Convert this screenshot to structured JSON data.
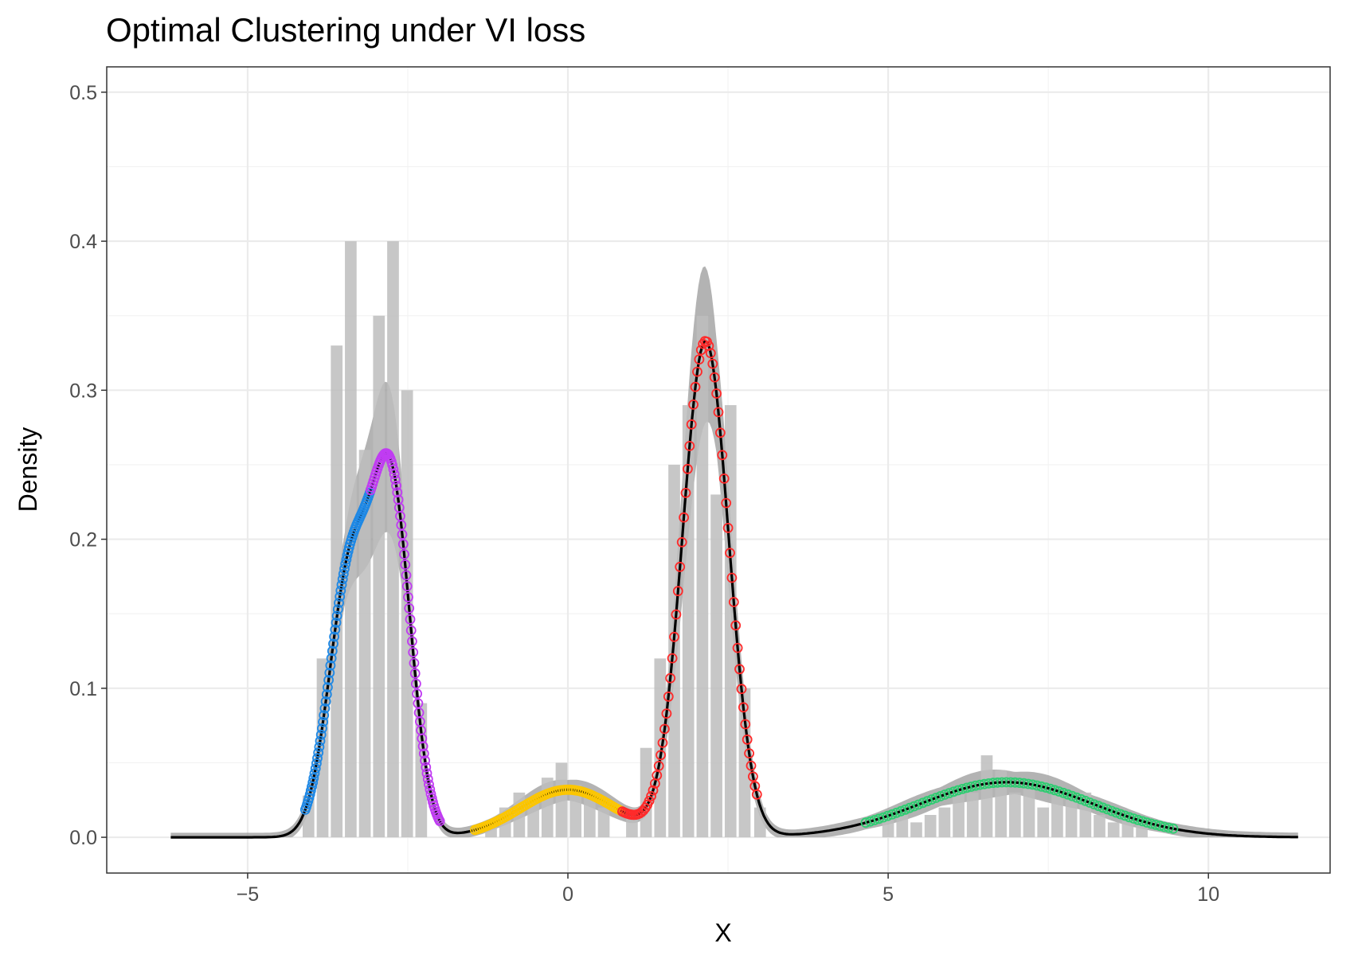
{
  "chart_data": {
    "type": "line",
    "title": "Optimal Clustering under VI loss",
    "xlabel": "X",
    "ylabel": "Density",
    "xlim": [
      -7.2,
      11.9
    ],
    "ylim": [
      -0.024,
      0.517
    ],
    "x_ticks": [
      -5,
      0,
      5,
      10
    ],
    "x_tick_labels": [
      "−5",
      "0",
      "5",
      "10"
    ],
    "y_ticks": [
      0.0,
      0.1,
      0.2,
      0.3,
      0.4,
      0.5
    ],
    "y_tick_labels": [
      "0.0",
      "0.1",
      "0.2",
      "0.3",
      "0.4",
      "0.5"
    ],
    "grid": true,
    "legend": "none",
    "colors": {
      "density_line": "#000000",
      "band": "#999999",
      "histogram": "#bdbdbd",
      "clusters": [
        "#1e88e5",
        "#c03cf2",
        "#fcc600",
        "#ff2a2a",
        "#2ecc71"
      ]
    },
    "density_curve": {
      "x_range": [
        -6.2,
        11.4
      ],
      "components": [
        {
          "weight": 0.145,
          "mean": -3.4,
          "sd": 0.33
        },
        {
          "weight": 0.17,
          "mean": -2.75,
          "sd": 0.3
        },
        {
          "weight": 0.06,
          "mean": 0.0,
          "sd": 0.75
        },
        {
          "weight": 0.3,
          "mean": 2.15,
          "sd": 0.36
        },
        {
          "weight": 0.125,
          "mean": 6.85,
          "sd": 1.35
        }
      ]
    },
    "histogram": {
      "bin_width": 0.22,
      "bins": [
        {
          "x": -4.05,
          "y": 0.028
        },
        {
          "x": -3.83,
          "y": 0.12
        },
        {
          "x": -3.61,
          "y": 0.33
        },
        {
          "x": -3.39,
          "y": 0.4
        },
        {
          "x": -3.17,
          "y": 0.26
        },
        {
          "x": -2.95,
          "y": 0.35
        },
        {
          "x": -2.73,
          "y": 0.4
        },
        {
          "x": -2.51,
          "y": 0.3
        },
        {
          "x": -2.29,
          "y": 0.09
        },
        {
          "x": -1.2,
          "y": 0.01
        },
        {
          "x": -0.98,
          "y": 0.02
        },
        {
          "x": -0.76,
          "y": 0.03
        },
        {
          "x": -0.54,
          "y": 0.025
        },
        {
          "x": -0.32,
          "y": 0.04
        },
        {
          "x": -0.1,
          "y": 0.05
        },
        {
          "x": 0.12,
          "y": 0.035
        },
        {
          "x": 0.34,
          "y": 0.03
        },
        {
          "x": 0.56,
          "y": 0.02
        },
        {
          "x": 1.0,
          "y": 0.02
        },
        {
          "x": 1.22,
          "y": 0.06
        },
        {
          "x": 1.44,
          "y": 0.12
        },
        {
          "x": 1.66,
          "y": 0.25
        },
        {
          "x": 1.88,
          "y": 0.29
        },
        {
          "x": 2.1,
          "y": 0.35
        },
        {
          "x": 2.32,
          "y": 0.23
        },
        {
          "x": 2.54,
          "y": 0.29
        },
        {
          "x": 2.76,
          "y": 0.1
        },
        {
          "x": 3.0,
          "y": 0.02
        },
        {
          "x": 5.0,
          "y": 0.015
        },
        {
          "x": 5.22,
          "y": 0.015
        },
        {
          "x": 5.44,
          "y": 0.01
        },
        {
          "x": 5.66,
          "y": 0.015
        },
        {
          "x": 5.88,
          "y": 0.02
        },
        {
          "x": 6.1,
          "y": 0.03
        },
        {
          "x": 6.32,
          "y": 0.03
        },
        {
          "x": 6.54,
          "y": 0.055
        },
        {
          "x": 6.76,
          "y": 0.045
        },
        {
          "x": 6.98,
          "y": 0.03
        },
        {
          "x": 7.2,
          "y": 0.035
        },
        {
          "x": 7.42,
          "y": 0.02
        },
        {
          "x": 7.64,
          "y": 0.03
        },
        {
          "x": 7.86,
          "y": 0.025
        },
        {
          "x": 8.08,
          "y": 0.03
        },
        {
          "x": 8.3,
          "y": 0.015
        },
        {
          "x": 8.52,
          "y": 0.01
        },
        {
          "x": 8.74,
          "y": 0.015
        },
        {
          "x": 8.96,
          "y": 0.01
        }
      ]
    },
    "clusters": [
      {
        "color": "#1e88e5",
        "x_range": [
          -4.1,
          -3.08
        ]
      },
      {
        "color": "#c03cf2",
        "x_range": [
          -3.08,
          -2.0
        ]
      },
      {
        "color": "#fcc600",
        "x_range": [
          -1.45,
          0.85
        ]
      },
      {
        "color": "#ff2a2a",
        "x_range": [
          0.85,
          2.95
        ]
      },
      {
        "color": "#2ecc71",
        "x_range": [
          4.65,
          9.45
        ]
      }
    ]
  }
}
